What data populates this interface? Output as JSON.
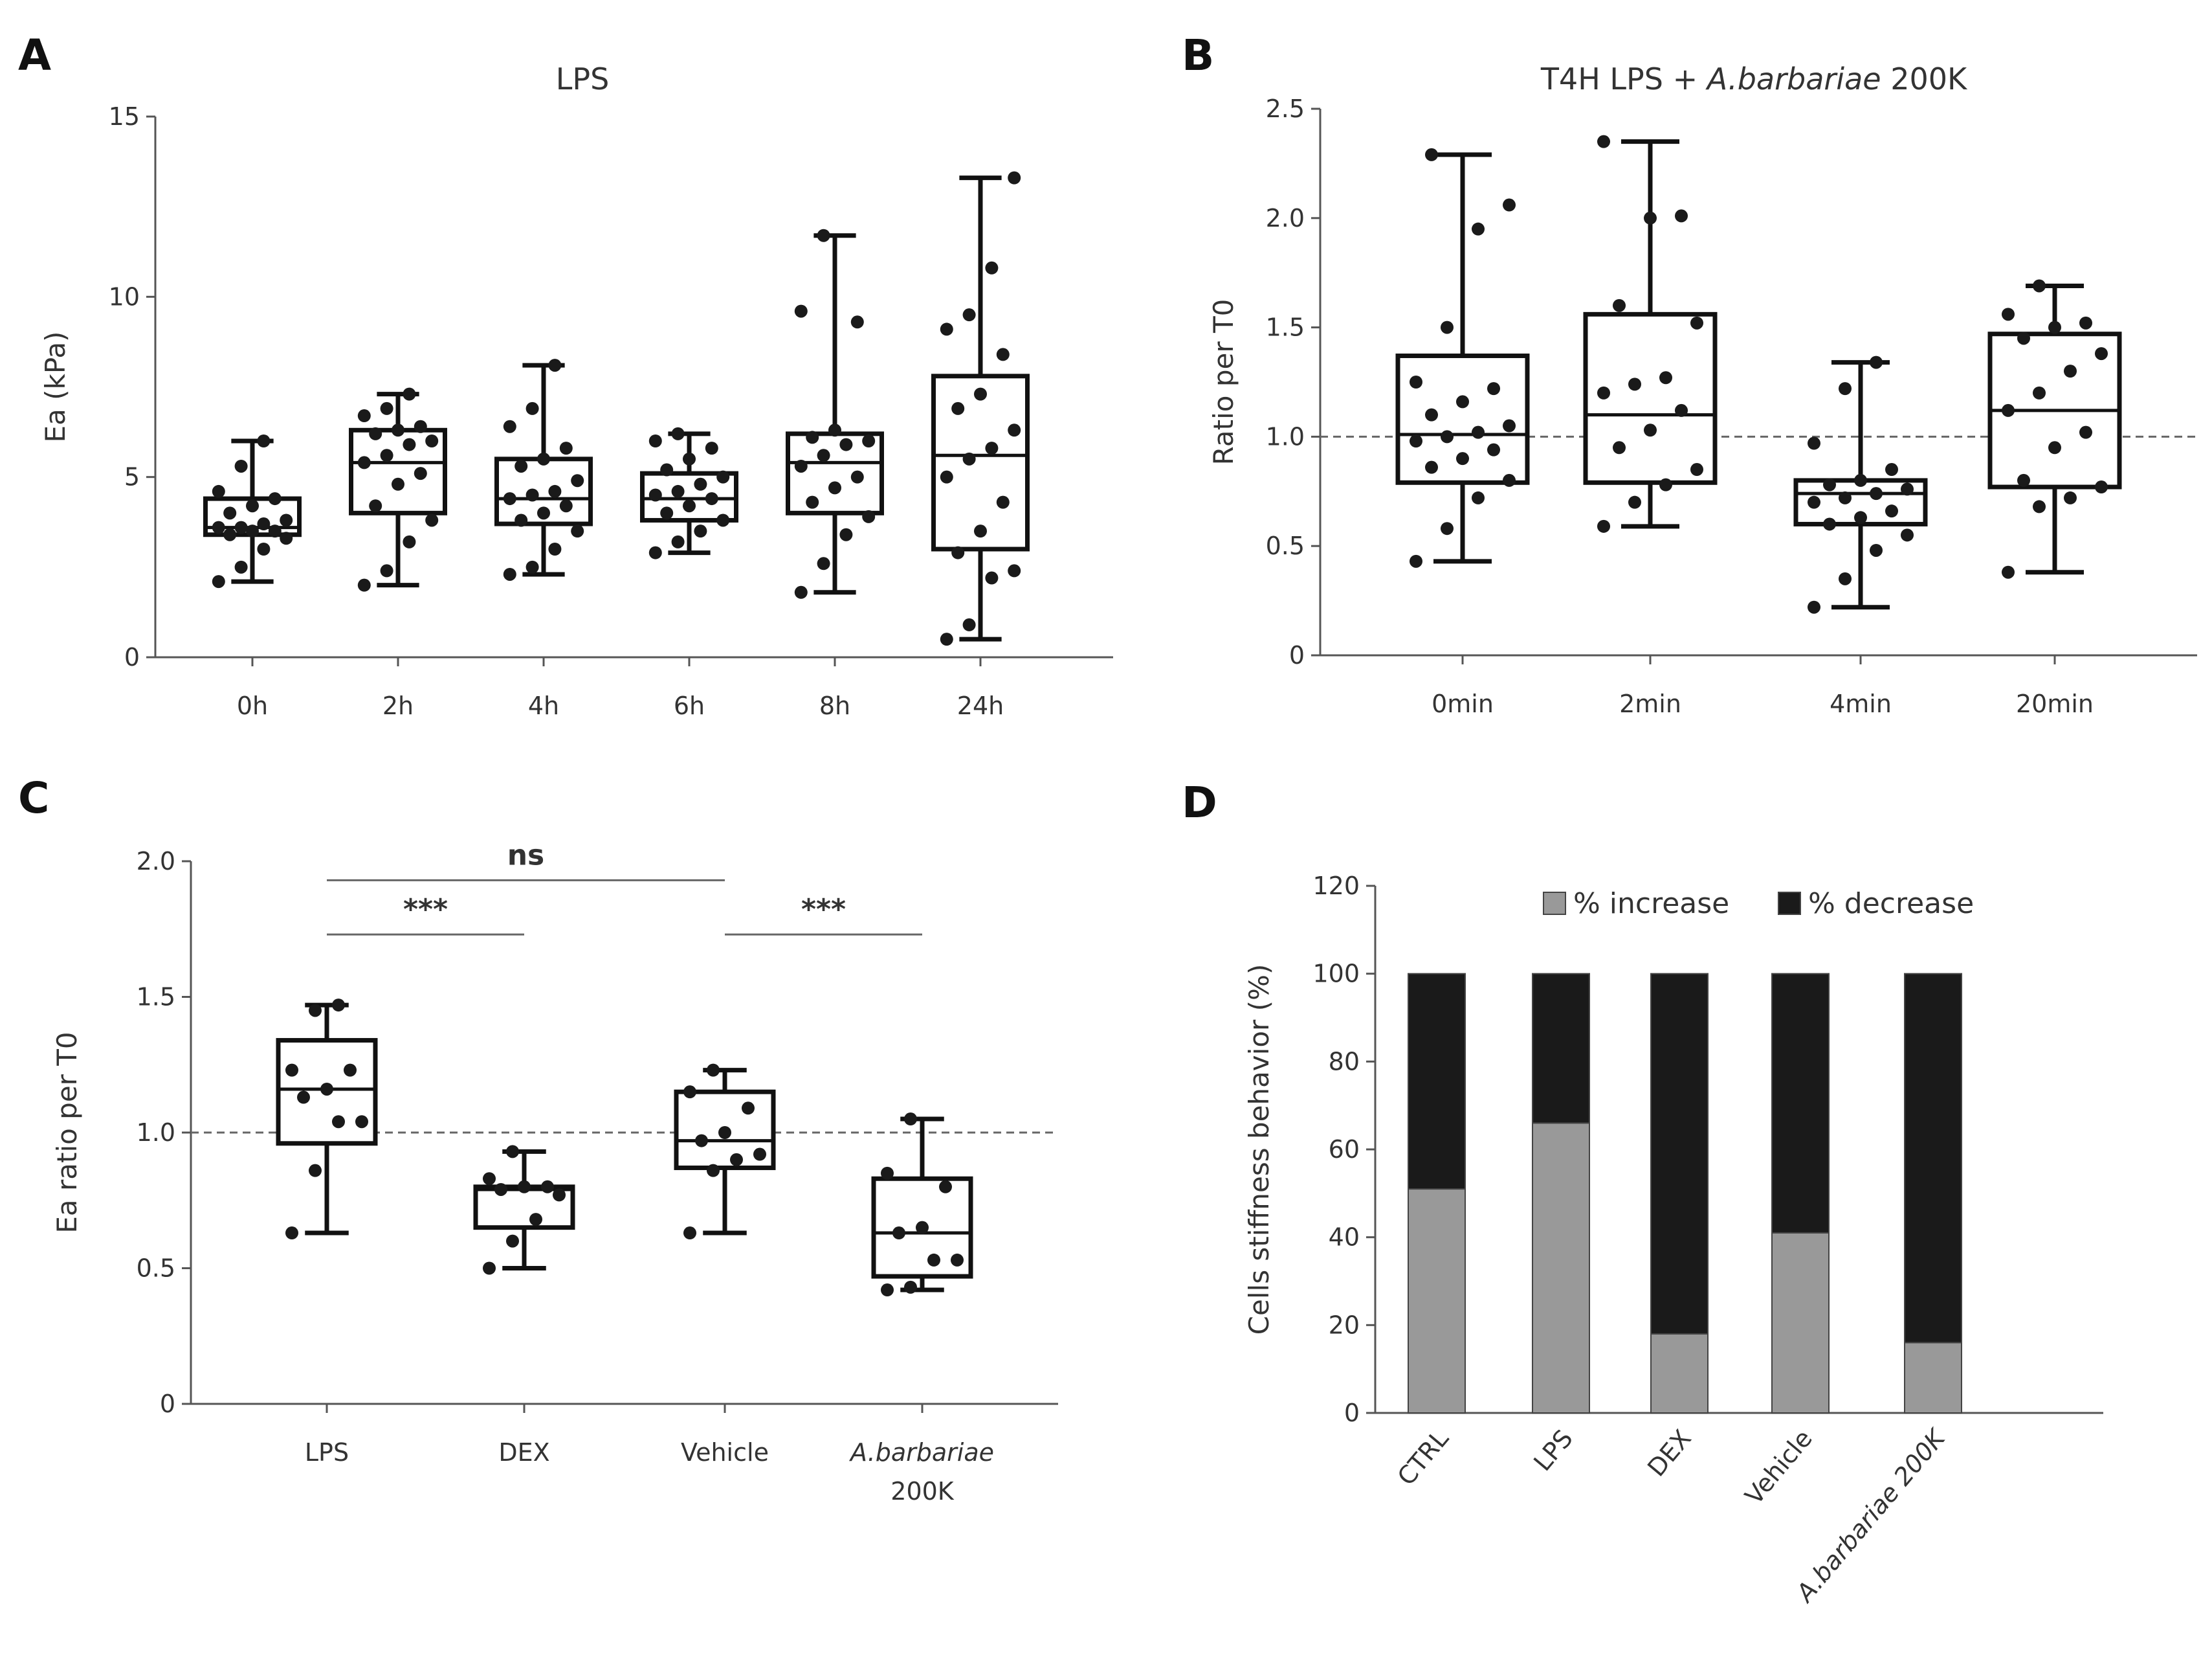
{
  "panels": {
    "A": {
      "letter": "A"
    },
    "B": {
      "letter": "B"
    },
    "C": {
      "letter": "C"
    },
    "D": {
      "letter": "D"
    }
  },
  "chart_data": [
    {
      "panel": "A",
      "type": "box",
      "title": "LPS",
      "xlabel": "",
      "ylabel": "Ea (kPa)",
      "ylim": [
        0,
        15
      ],
      "yticks": [
        0,
        5,
        10,
        15
      ],
      "categories": [
        "0h",
        "2h",
        "4h",
        "6h",
        "8h",
        "24h"
      ],
      "boxes": [
        {
          "min": 2.1,
          "q1": 3.4,
          "median": 3.6,
          "q3": 4.4,
          "max": 6.0,
          "points": [
            2.1,
            2.5,
            3.0,
            3.3,
            3.4,
            3.5,
            3.5,
            3.6,
            3.6,
            3.7,
            3.8,
            4.0,
            4.2,
            4.4,
            4.6,
            5.3,
            6.0
          ]
        },
        {
          "min": 2.0,
          "q1": 4.0,
          "median": 5.4,
          "q3": 6.3,
          "max": 7.3,
          "points": [
            2.0,
            2.4,
            3.2,
            3.8,
            4.2,
            4.8,
            5.1,
            5.4,
            5.6,
            5.9,
            6.0,
            6.2,
            6.3,
            6.4,
            6.7,
            6.9,
            7.3
          ]
        },
        {
          "min": 2.3,
          "q1": 3.7,
          "median": 4.4,
          "q3": 5.5,
          "max": 8.1,
          "points": [
            2.3,
            2.5,
            3.0,
            3.5,
            3.8,
            4.0,
            4.2,
            4.4,
            4.5,
            4.6,
            4.9,
            5.3,
            5.5,
            5.8,
            6.4,
            6.9,
            8.1
          ]
        },
        {
          "min": 2.9,
          "q1": 3.8,
          "median": 4.4,
          "q3": 5.1,
          "max": 6.2,
          "points": [
            2.9,
            3.2,
            3.5,
            3.8,
            4.0,
            4.2,
            4.4,
            4.5,
            4.6,
            4.8,
            5.0,
            5.2,
            5.5,
            5.8,
            6.0,
            6.2
          ]
        },
        {
          "min": 1.8,
          "q1": 4.0,
          "median": 5.4,
          "q3": 6.2,
          "max": 11.7,
          "points": [
            1.8,
            2.6,
            3.4,
            3.9,
            4.3,
            4.7,
            5.0,
            5.3,
            5.6,
            5.9,
            6.0,
            6.1,
            6.3,
            9.3,
            9.6,
            11.7
          ]
        },
        {
          "min": 0.5,
          "q1": 3.0,
          "median": 5.6,
          "q3": 7.8,
          "max": 13.3,
          "points": [
            0.5,
            0.9,
            2.2,
            2.4,
            2.9,
            3.5,
            4.3,
            5.0,
            5.5,
            5.8,
            6.3,
            6.9,
            7.3,
            8.4,
            9.1,
            9.5,
            10.8,
            13.3
          ]
        }
      ]
    },
    {
      "panel": "B",
      "type": "box",
      "title_prefix": "T4H LPS + ",
      "title_italic": "A.barbariae",
      "title_suffix": " 200K",
      "xlabel": "",
      "ylabel": "Ratio per T0",
      "ylim": [
        0,
        2.5
      ],
      "yticks": [
        "0",
        "0.5",
        "1.0",
        "1.5",
        "2.0",
        "2.5"
      ],
      "reference_line": 1.0,
      "categories": [
        "0min",
        "2min",
        "4min",
        "20min"
      ],
      "boxes": [
        {
          "min": 0.43,
          "q1": 0.79,
          "median": 1.01,
          "q3": 1.37,
          "max": 2.29,
          "points": [
            0.43,
            0.58,
            0.72,
            0.8,
            0.86,
            0.9,
            0.94,
            0.98,
            1.0,
            1.02,
            1.05,
            1.1,
            1.16,
            1.22,
            1.25,
            1.5,
            1.95,
            2.06,
            2.29
          ]
        },
        {
          "min": 0.59,
          "q1": 0.79,
          "median": 1.1,
          "q3": 1.56,
          "max": 2.35,
          "points": [
            0.59,
            0.7,
            0.78,
            0.85,
            0.95,
            1.03,
            1.12,
            1.2,
            1.24,
            1.27,
            1.52,
            1.6,
            2.0,
            2.01,
            2.35
          ]
        },
        {
          "min": 0.22,
          "q1": 0.6,
          "median": 0.74,
          "q3": 0.8,
          "max": 1.34,
          "points": [
            0.22,
            0.35,
            0.48,
            0.55,
            0.6,
            0.63,
            0.66,
            0.7,
            0.72,
            0.74,
            0.76,
            0.78,
            0.8,
            0.85,
            0.97,
            1.22,
            1.34
          ]
        },
        {
          "min": 0.38,
          "q1": 0.77,
          "median": 1.12,
          "q3": 1.47,
          "max": 1.69,
          "points": [
            0.38,
            0.68,
            0.72,
            0.77,
            0.8,
            0.95,
            1.02,
            1.12,
            1.2,
            1.3,
            1.38,
            1.45,
            1.5,
            1.52,
            1.56,
            1.69
          ]
        }
      ]
    },
    {
      "panel": "C",
      "type": "box",
      "title": "",
      "xlabel": "",
      "ylabel": "Ea ratio per T0",
      "ylim": [
        0,
        2.0
      ],
      "yticks": [
        "0",
        "0.5",
        "1.0",
        "1.5",
        "2.0"
      ],
      "reference_line": 1.0,
      "categories": [
        "LPS",
        "DEX",
        "Vehicle",
        "A.barbariae"
      ],
      "category_line2": [
        "",
        "",
        "",
        "200K"
      ],
      "italic_categories": [
        false,
        false,
        false,
        true
      ],
      "boxes": [
        {
          "min": 0.63,
          "q1": 0.96,
          "median": 1.16,
          "q3": 1.34,
          "max": 1.47,
          "points": [
            0.63,
            0.86,
            1.04,
            1.04,
            1.13,
            1.16,
            1.23,
            1.23,
            1.45,
            1.47
          ]
        },
        {
          "min": 0.5,
          "q1": 0.65,
          "median": 0.79,
          "q3": 0.8,
          "max": 0.93,
          "points": [
            0.5,
            0.6,
            0.68,
            0.77,
            0.79,
            0.8,
            0.8,
            0.83,
            0.93
          ]
        },
        {
          "min": 0.63,
          "q1": 0.87,
          "median": 0.97,
          "q3": 1.15,
          "max": 1.23,
          "points": [
            0.63,
            0.86,
            0.9,
            0.92,
            0.97,
            1.0,
            1.09,
            1.15,
            1.23
          ]
        },
        {
          "min": 0.42,
          "q1": 0.47,
          "median": 0.63,
          "q3": 0.83,
          "max": 1.05,
          "points": [
            0.42,
            0.43,
            0.53,
            0.53,
            0.63,
            0.65,
            0.8,
            0.85,
            1.05
          ]
        }
      ],
      "annotations": [
        {
          "label": "ns",
          "from": 0,
          "to": 2,
          "y": 1.93
        },
        {
          "label": "***",
          "from": 0,
          "to": 1,
          "y": 1.73
        },
        {
          "label": "***",
          "from": 2,
          "to": 3,
          "y": 1.73
        }
      ]
    },
    {
      "panel": "D",
      "type": "stacked-bar",
      "title": "",
      "xlabel": "",
      "ylabel": "Cells stiffness behavior (%)",
      "ylim": [
        0,
        120
      ],
      "yticks": [
        0,
        20,
        40,
        60,
        80,
        100,
        120
      ],
      "categories": [
        "CTRL",
        "LPS",
        "DEX",
        "Vehicle",
        "A.barbariae 200K"
      ],
      "italic_categories": [
        false,
        false,
        false,
        false,
        true
      ],
      "legend_position": "top",
      "series": [
        {
          "name": "% increase",
          "color": "#999999",
          "values": [
            51,
            66,
            18,
            41,
            16
          ]
        },
        {
          "name": "% decrease",
          "color": "#1a1a1a",
          "values": [
            49,
            34,
            82,
            59,
            84
          ]
        }
      ]
    }
  ]
}
